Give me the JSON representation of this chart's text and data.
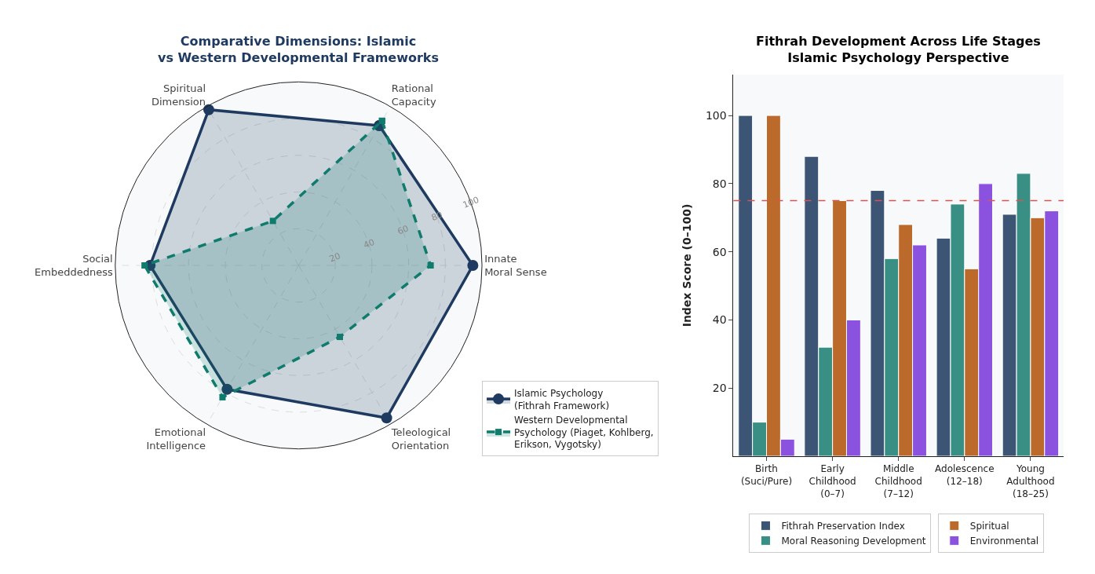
{
  "chart_data": [
    {
      "type": "radar",
      "title": "Comparative Dimensions: Islamic\nvs Western Developmental Frameworks",
      "categories": [
        "Rational\nCapacity",
        "Innate\nMoral Sense",
        "Teleological\nOrientation",
        "Emotional\nIntelligence",
        "Social\nEmbeddedness",
        "Spiritual\nDimension"
      ],
      "series": [
        {
          "name": "Islamic Psychology\n(Fithrah Framework)",
          "color": "#1f3a60",
          "values": [
            88,
            95,
            96,
            78,
            81,
            98
          ],
          "marker": "circle",
          "line_style": "solid"
        },
        {
          "name": "Western Developmental\nPsychology (Piaget, Kohlberg,\nErikson, Vygotsky)",
          "color": "#0f7b6c",
          "values": [
            91,
            72,
            45,
            83,
            84,
            28
          ],
          "marker": "square",
          "line_style": "dashed"
        }
      ],
      "ylim": [
        0,
        100
      ],
      "yticks": [
        20,
        40,
        60,
        80,
        100
      ],
      "grid": true,
      "legend": "bottom right"
    },
    {
      "type": "bar",
      "title": "Fithrah Development Across Life Stages\nIslamic Psychology Perspective",
      "ylabel": "Index Score (0–100)",
      "categories": [
        "Birth\n(Suci/Pure)",
        "Early\nChildhood\n(0–7)",
        "Middle\nChildhood\n(7–12)",
        "Adolescence\n(12–18)",
        "Young\nAdulthood\n(18–25)"
      ],
      "series": [
        {
          "name": "Fithrah Preservation Index",
          "color": "#3d5574",
          "values": [
            100,
            88,
            78,
            64,
            71
          ]
        },
        {
          "name": "Moral Reasoning Development",
          "color": "#3a8f85",
          "values": [
            10,
            32,
            58,
            74,
            83
          ]
        },
        {
          "name": "Spiritual",
          "color": "#bb6a2c",
          "values": [
            100,
            75,
            68,
            55,
            70
          ]
        },
        {
          "name": "Environmental",
          "color": "#8b52e0",
          "values": [
            5,
            40,
            62,
            80,
            72
          ]
        }
      ],
      "ylim": [
        0,
        112
      ],
      "yticks": [
        20,
        40,
        60,
        80,
        100
      ],
      "ref_lines": [
        {
          "axis": "y",
          "value": 75,
          "color": "#d9534f",
          "line_style": "dashed"
        }
      ],
      "grid": false,
      "legend": "bottom"
    }
  ]
}
